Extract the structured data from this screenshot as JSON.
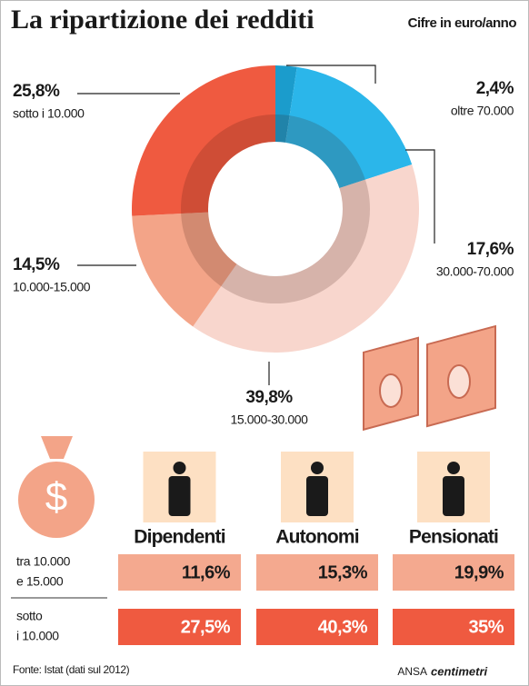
{
  "chart_data": {
    "type": "donut",
    "title": "La ripartizione dei redditi",
    "subtitle": "Cifre in euro/anno",
    "categories": [
      "oltre 70.000",
      "30.000-70.000",
      "15.000-30.000",
      "10.000-15.000",
      "sotto i 10.000"
    ],
    "values": [
      2.4,
      17.6,
      39.8,
      14.5,
      25.8
    ],
    "value_labels": [
      "2,4%",
      "17,6%",
      "39,8%",
      "14,5%",
      "25,8%"
    ],
    "colors": [
      "#1b9ccc",
      "#2bb6ea",
      "#f8d6cd",
      "#f3a488",
      "#ef5a40"
    ]
  },
  "table": {
    "columns": [
      "Dipendenti",
      "Autonomi",
      "Pensionati"
    ],
    "rows": [
      {
        "label": [
          "tra 10.000",
          "e 15.000"
        ],
        "cells": [
          "11,6%",
          "15,3%",
          "19,9%"
        ],
        "color": "#f4a98f"
      },
      {
        "label": [
          "sotto",
          "i 10.000"
        ],
        "cells": [
          "27,5%",
          "40,3%",
          "35%"
        ],
        "color": "#ef5a40"
      }
    ]
  },
  "footer": {
    "source": "Fonte: Istat (dati sul 2012)",
    "agency": "ANSA",
    "brand": "centimetri"
  }
}
